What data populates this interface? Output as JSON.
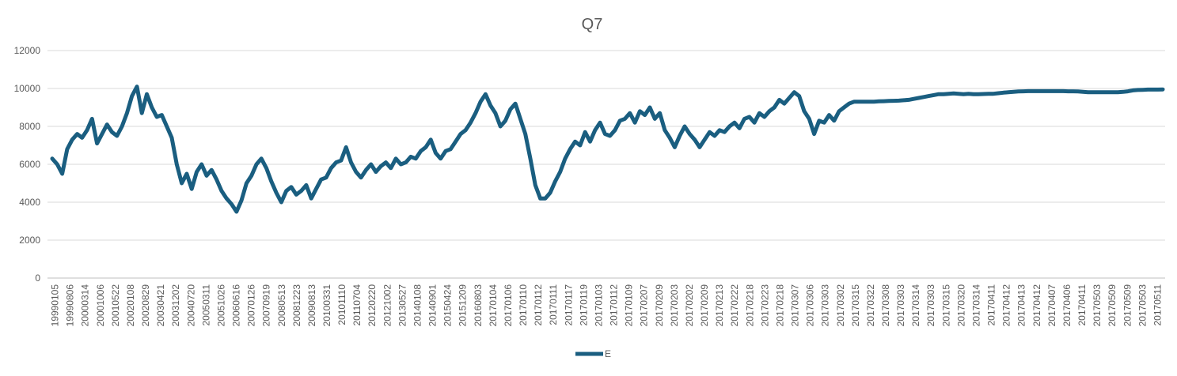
{
  "chart_data": {
    "type": "line",
    "title": "Q7",
    "xlabel": "",
    "ylabel": "",
    "ylim": [
      0,
      12000
    ],
    "yticks": [
      0,
      2000,
      4000,
      6000,
      8000,
      10000,
      12000
    ],
    "grid": true,
    "legend_position": "bottom",
    "x_tick_labels": [
      "19990105",
      "19990806",
      "20000314",
      "20001006",
      "20010522",
      "20020108",
      "20020829",
      "20030421",
      "20031202",
      "20040720",
      "20050311",
      "20051026",
      "20060616",
      "20070126",
      "20070919",
      "20080513",
      "20081223",
      "20090813",
      "20100331",
      "20101110",
      "20110704",
      "20120220",
      "20121002",
      "20130527",
      "20140108",
      "20140901",
      "20150424",
      "20151209",
      "20160803",
      "20170104",
      "20170106",
      "20170110",
      "20170112",
      "20170111",
      "20170117",
      "20170119",
      "20170103",
      "20170112",
      "20170109",
      "20170207",
      "20170209",
      "20170203",
      "20170202",
      "20170209",
      "20170213",
      "20170222",
      "20170218",
      "20170223",
      "20170218",
      "20170307",
      "20170306",
      "20170303",
      "20170302",
      "20170315",
      "20170322",
      "20170308",
      "20170303",
      "20170314",
      "20170303",
      "20170315",
      "20170320",
      "20170314",
      "20170411",
      "20170412",
      "20170413",
      "20170412",
      "20170407",
      "20170406",
      "20170411",
      "20170503",
      "20170509",
      "20170509",
      "20170503",
      "20170511"
    ],
    "series": [
      {
        "name": "E",
        "color": "#1a5e80",
        "values": [
          6300,
          6000,
          5500,
          6800,
          7300,
          7600,
          7400,
          7800,
          8400,
          7100,
          7600,
          8100,
          7700,
          7500,
          8000,
          8700,
          9600,
          10100,
          8700,
          9700,
          9000,
          8500,
          8600,
          8000,
          7400,
          6000,
          5000,
          5500,
          4700,
          5600,
          6000,
          5400,
          5700,
          5200,
          4600,
          4200,
          3900,
          3500,
          4100,
          5000,
          5400,
          6000,
          6300,
          5800,
          5100,
          4500,
          4000,
          4600,
          4800,
          4400,
          4600,
          4900,
          4200,
          4700,
          5200,
          5300,
          5800,
          6100,
          6200,
          6900,
          6100,
          5600,
          5300,
          5700,
          6000,
          5600,
          5900,
          6100,
          5800,
          6300,
          6000,
          6100,
          6400,
          6300,
          6700,
          6900,
          7300,
          6600,
          6300,
          6700,
          6800,
          7200,
          7600,
          7800,
          8200,
          8700,
          9300,
          9700,
          9100,
          8700,
          8000,
          8300,
          8900,
          9200,
          8400,
          7600,
          6300,
          4900,
          4200,
          4200,
          4500,
          5100,
          5600,
          6300,
          6800,
          7200,
          7000,
          7700,
          7200,
          7800,
          8200,
          7600,
          7500,
          7800,
          8300,
          8400,
          8700,
          8200,
          8800,
          8600,
          9000,
          8400,
          8700,
          7800,
          7400,
          6900,
          7500,
          8000,
          7600,
          7300,
          6900,
          7300,
          7700,
          7500,
          7800,
          7700,
          8000,
          8200,
          7900,
          8400,
          8500,
          8200,
          8700,
          8500,
          8800,
          9000,
          9400,
          9200,
          9500,
          9800,
          9600,
          8800,
          8400,
          7600,
          8300,
          8200,
          8600,
          8300,
          8800,
          9000,
          9200,
          9300,
          9300,
          9300,
          9300,
          9300,
          9320,
          9330,
          9340,
          9350,
          9360,
          9380,
          9400,
          9450,
          9500,
          9550,
          9600,
          9650,
          9700,
          9700,
          9720,
          9740,
          9720,
          9700,
          9720,
          9700,
          9700,
          9710,
          9720,
          9720,
          9750,
          9780,
          9800,
          9820,
          9840,
          9850,
          9860,
          9860,
          9860,
          9860,
          9860,
          9860,
          9860,
          9860,
          9850,
          9850,
          9840,
          9820,
          9800,
          9800,
          9800,
          9800,
          9800,
          9800,
          9800,
          9820,
          9850,
          9900,
          9920,
          9930,
          9940,
          9940,
          9940,
          9950
        ]
      }
    ]
  }
}
